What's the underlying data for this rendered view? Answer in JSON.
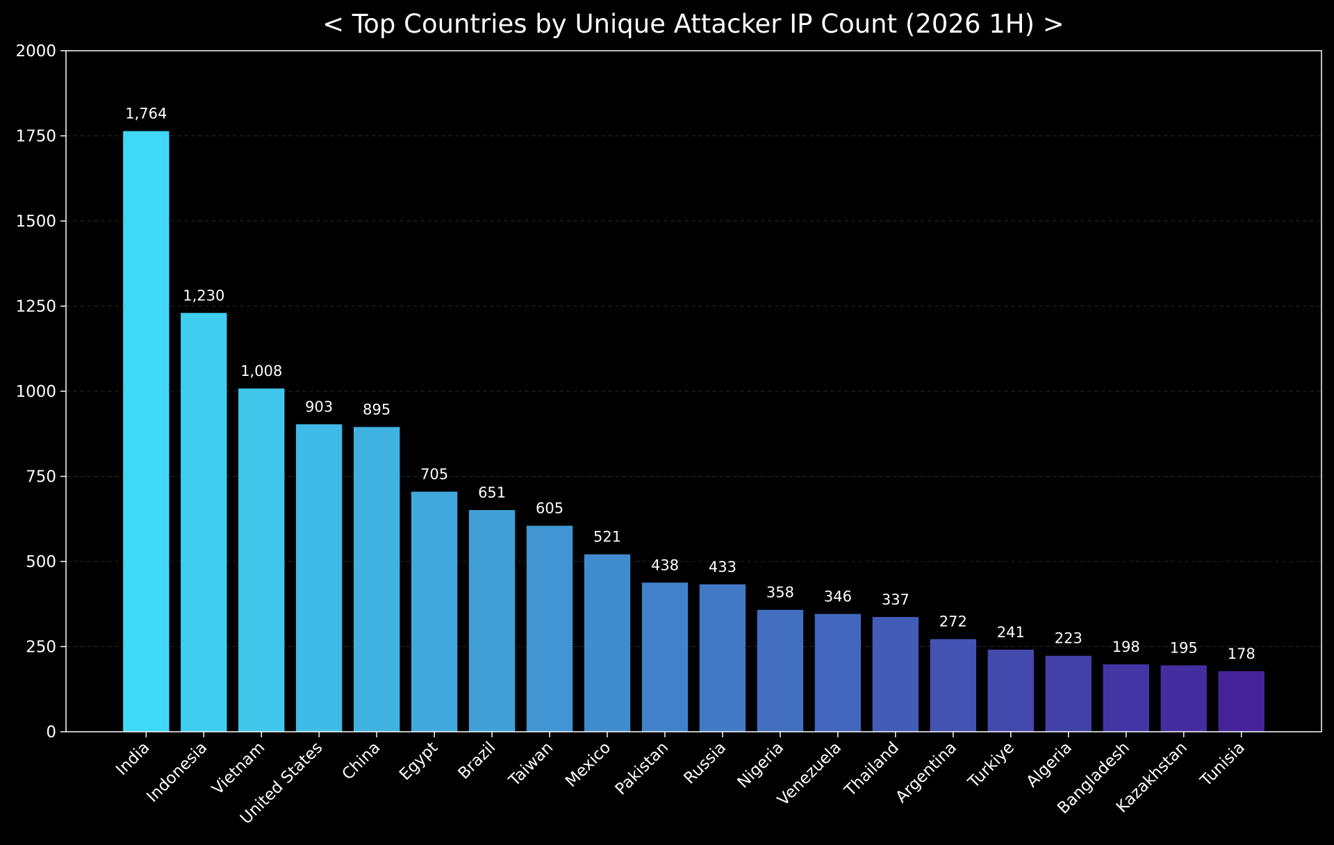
{
  "chart_data": {
    "type": "bar",
    "title": "< Top Countries by Unique Attacker IP Count (2026 1H) >",
    "xlabel": "",
    "ylabel": "",
    "categories": [
      "India",
      "Indonesia",
      "Vietnam",
      "United States",
      "China",
      "Egypt",
      "Brazil",
      "Taiwan",
      "Mexico",
      "Pakistan",
      "Russia",
      "Nigeria",
      "Venezuela",
      "Thailand",
      "Argentina",
      "Turkiye",
      "Algeria",
      "Bangladesh",
      "Kazakhstan",
      "Tunisia"
    ],
    "values": [
      1764,
      1230,
      1008,
      903,
      895,
      705,
      651,
      605,
      521,
      438,
      433,
      358,
      346,
      337,
      272,
      241,
      223,
      198,
      195,
      178
    ],
    "value_labels": [
      "1,764",
      "1,230",
      "1,008",
      "903",
      "895",
      "705",
      "651",
      "605",
      "521",
      "438",
      "433",
      "358",
      "346",
      "337",
      "272",
      "241",
      "223",
      "198",
      "195",
      "178"
    ],
    "ylim": [
      0,
      2000
    ],
    "yticks": [
      0,
      250,
      500,
      750,
      1000,
      1250,
      1500,
      1750,
      2000
    ],
    "grid": "horizontal dashed",
    "legend": "none",
    "colors": {
      "background": "#000000",
      "text": "#ffffff",
      "axis": "#ffffff",
      "grid": "#2a2a2a",
      "bar_start": "#3fd8f5",
      "bar_end": "#44239a"
    }
  }
}
